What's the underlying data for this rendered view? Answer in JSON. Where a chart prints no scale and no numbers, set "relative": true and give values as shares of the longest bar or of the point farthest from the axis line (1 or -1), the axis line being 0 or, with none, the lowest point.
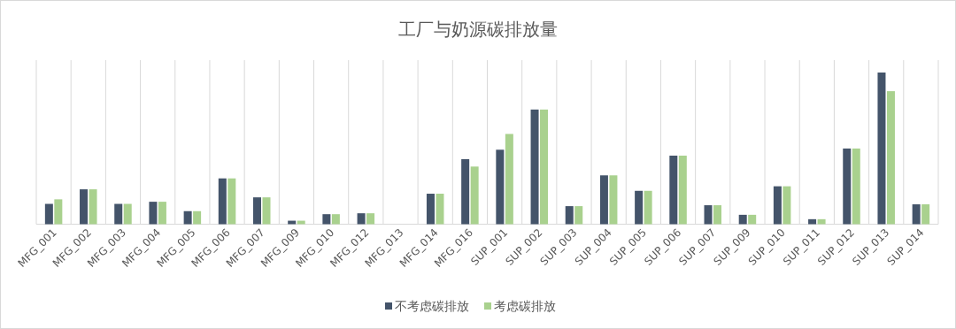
{
  "chart_data": {
    "type": "bar",
    "title": "工厂与奶源碳排放量",
    "relative": true,
    "grid": "x",
    "legend": "bottom",
    "categories": [
      "MFG_001",
      "MFG_002",
      "MFG_003",
      "MFG_004",
      "MFG_005",
      "MFG_006",
      "MFG_007",
      "MFG_009",
      "MFG_010",
      "MFG_012",
      "MFG_013",
      "MFG_014",
      "MFG_016",
      "SUP_001",
      "SUP_002",
      "SUP_003",
      "SUP_004",
      "SUP_005",
      "SUP_006",
      "SUP_007",
      "SUP_009",
      "SUP_010",
      "SUP_011",
      "SUP_012",
      "SUP_013",
      "SUP_014"
    ],
    "series": [
      {
        "name": "不考虑碳排放",
        "color": "#44546a",
        "values": [
          0.134,
          0.23,
          0.134,
          0.148,
          0.086,
          0.302,
          0.177,
          0.023,
          0.066,
          0.072,
          null,
          0.201,
          0.429,
          0.491,
          0.756,
          0.119,
          0.322,
          0.22,
          0.452,
          0.125,
          0.062,
          0.25,
          0.033,
          0.499,
          1,
          0.131
        ]
      },
      {
        "name": "考虑碳排放",
        "color": "#a9d18e",
        "values": [
          0.164,
          0.23,
          0.134,
          0.148,
          0.086,
          0.302,
          0.177,
          0.023,
          0.066,
          0.072,
          null,
          0.201,
          0.38,
          0.595,
          0.756,
          0.119,
          0.322,
          0.22,
          0.452,
          0.125,
          0.062,
          0.25,
          0.033,
          0.499,
          0.877,
          0.131
        ]
      }
    ]
  }
}
